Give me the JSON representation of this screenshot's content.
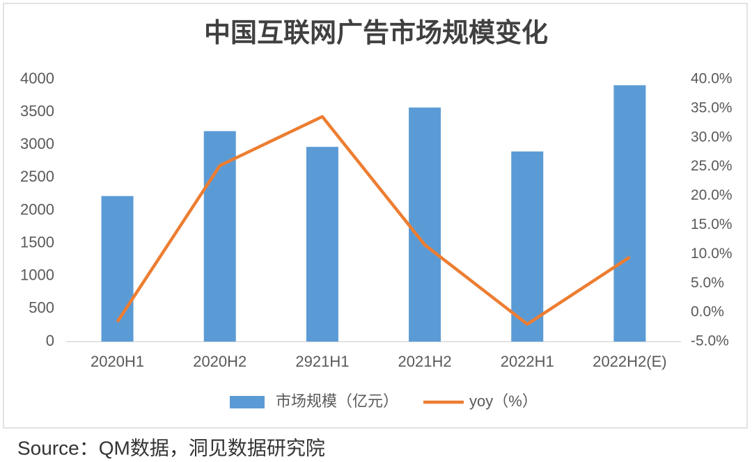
{
  "chart_data": {
    "type": "bar",
    "title": "中国互联网广告市场规模变化",
    "categories": [
      "2020H1",
      "2020H2",
      "2921H1",
      "2021H2",
      "2022H1",
      "2022H2(E)"
    ],
    "series": [
      {
        "name": "市场规模（亿元）",
        "type": "bar",
        "color": "#5b9bd5",
        "values": [
          2220,
          3210,
          2970,
          3570,
          2900,
          3910
        ]
      },
      {
        "name": "yoy（%）",
        "type": "line",
        "axis": "y2",
        "color": "#ed7d31",
        "values": [
          -1.6,
          25.2,
          33.6,
          11.6,
          -2.0,
          9.5
        ]
      }
    ],
    "ylim": [
      0,
      4000
    ],
    "yticks": [
      0,
      500,
      1000,
      1500,
      2000,
      2500,
      3000,
      3500,
      4000
    ],
    "y2lim": [
      -5,
      40
    ],
    "y2ticks": [
      {
        "value": -5,
        "label": "-5.0%"
      },
      {
        "value": 0,
        "label": "0.0%"
      },
      {
        "value": 5,
        "label": "5.0%"
      },
      {
        "value": 10,
        "label": "10.0%"
      },
      {
        "value": 15,
        "label": "15.0%"
      },
      {
        "value": 20,
        "label": "20.0%"
      },
      {
        "value": 25,
        "label": "25.0%"
      },
      {
        "value": 30,
        "label": "30.0%"
      },
      {
        "value": 35,
        "label": "35.0%"
      },
      {
        "value": 40,
        "label": "40.0%"
      }
    ],
    "grid": false,
    "legend": "bottom",
    "source": "Source：QM数据，洞见数据研究院"
  }
}
